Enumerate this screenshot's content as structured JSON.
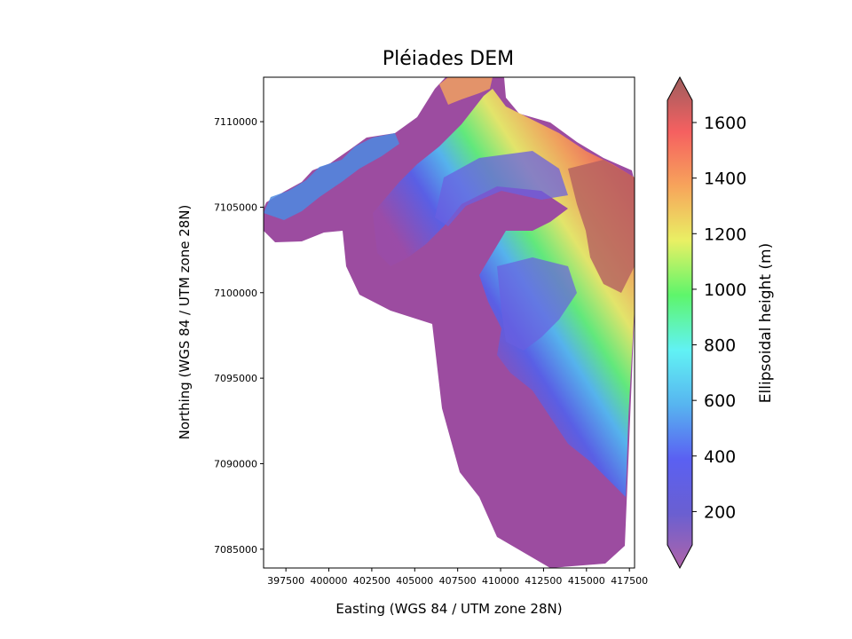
{
  "chart_data": {
    "type": "heatmap",
    "title": "Pléiades DEM",
    "xlabel": "Easting (WGS 84 / UTM zone 28N)",
    "ylabel": "Northing (WGS 84 / UTM zone 28N)",
    "xlim": [
      396200,
      417800
    ],
    "ylim": [
      7083900,
      7112600
    ],
    "x_ticks": [
      397500,
      400000,
      402500,
      405000,
      407500,
      410000,
      412500,
      415000,
      417500
    ],
    "x_tick_labels": [
      "397500",
      "400000",
      "402500",
      "405000",
      "407500",
      "410000",
      "412500",
      "415000",
      "417500"
    ],
    "y_ticks": [
      7085000,
      7090000,
      7095000,
      7100000,
      7105000,
      7110000
    ],
    "y_tick_labels": [
      "7085000",
      "7090000",
      "7095000",
      "7100000",
      "7105000",
      "7110000"
    ],
    "colorbar": {
      "label": "Ellipsoidal height (m)",
      "colormap": "rainbow (matplotlib jet-like) with hillshade overlay, alpha 0.6",
      "range": [
        80,
        1680
      ],
      "ticks": [
        200,
        400,
        600,
        800,
        1000,
        1200,
        1400,
        1600
      ],
      "tick_labels": [
        "200",
        "400",
        "600",
        "800",
        "1000",
        "1200",
        "1400",
        "1600"
      ],
      "extend": "both"
    },
    "colormap_stops": [
      "#b064a8",
      "#6a5fd1",
      "#5a60f2",
      "#57b5f0",
      "#61f2f4",
      "#5ef56b",
      "#e9f064",
      "#f7a45b",
      "#f56060",
      "#9e5d5e"
    ],
    "terrain": {
      "lowland_color": "#9c4ca0",
      "highland_color": "#8a6a62"
    }
  }
}
